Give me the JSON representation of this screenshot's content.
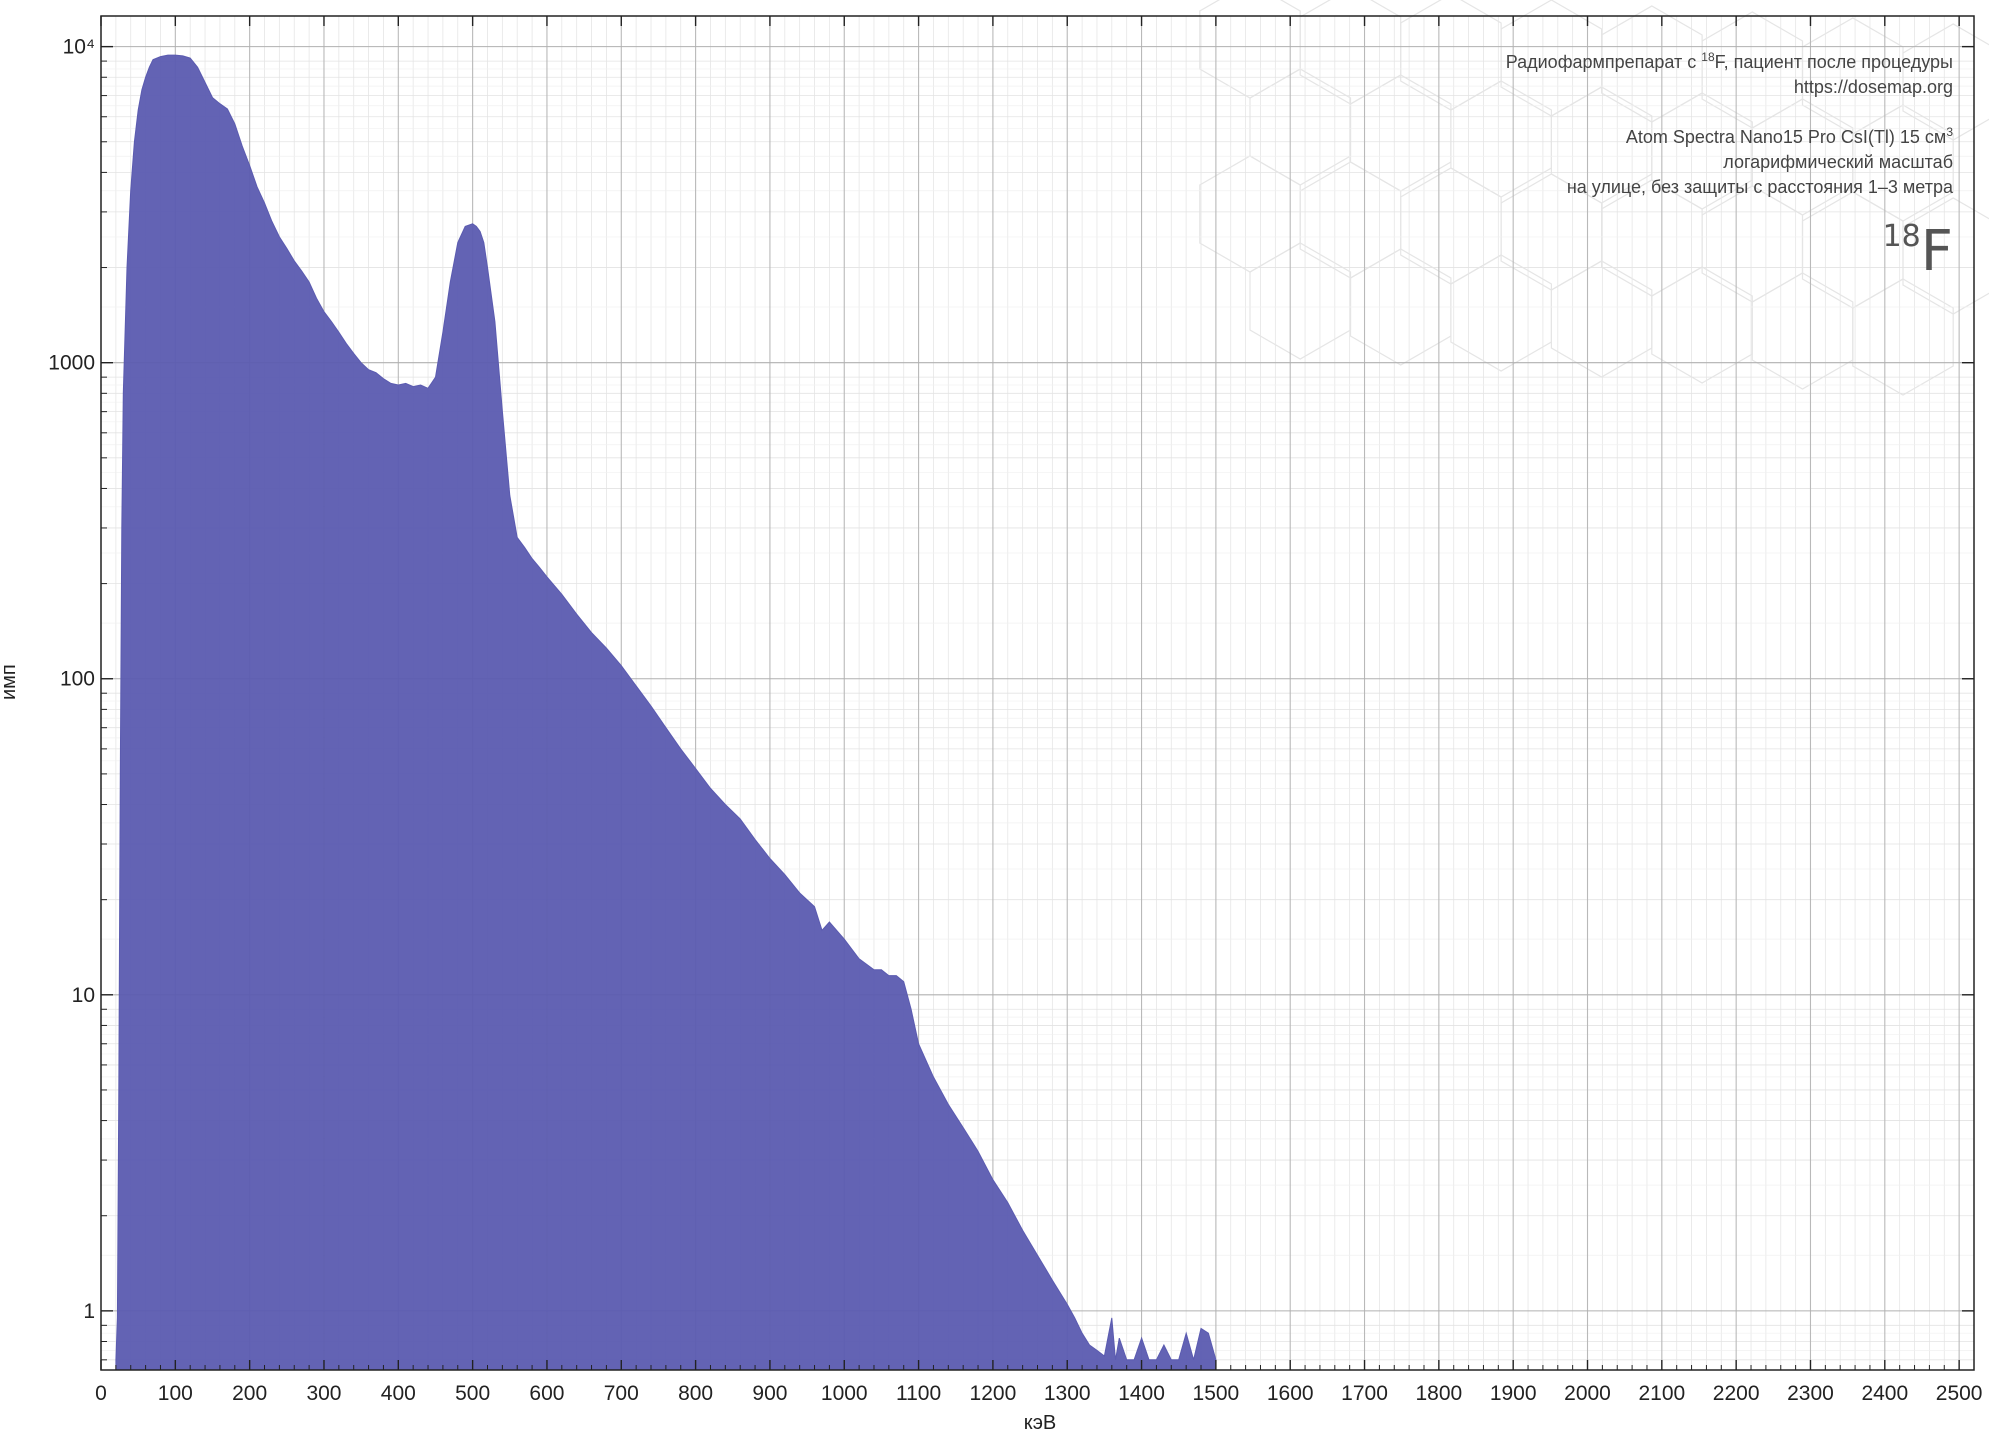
{
  "chart_data": {
    "type": "area",
    "title": "",
    "xlabel": "кэВ",
    "ylabel": "имп",
    "xlim": [
      0,
      2520
    ],
    "ylim": [
      0.65,
      12500
    ],
    "y_scale": "log",
    "grid": true,
    "x_ticks": [
      0,
      100,
      200,
      300,
      400,
      500,
      600,
      700,
      800,
      900,
      1000,
      1100,
      1200,
      1300,
      1400,
      1500,
      1600,
      1700,
      1800,
      1900,
      2000,
      2100,
      2200,
      2300,
      2400,
      2500
    ],
    "y_ticks": [
      {
        "value": 1,
        "label": "1"
      },
      {
        "value": 10,
        "label": "10"
      },
      {
        "value": 100,
        "label": "100"
      },
      {
        "value": 1000,
        "label": "1000"
      },
      {
        "value": 10000,
        "label": "10⁴"
      }
    ],
    "fill_color": "#5b5bb0",
    "series": [
      {
        "name": "",
        "x": [
          20,
          22,
          24,
          26,
          28,
          30,
          35,
          40,
          45,
          50,
          55,
          60,
          65,
          70,
          80,
          90,
          100,
          110,
          120,
          130,
          140,
          150,
          160,
          170,
          180,
          190,
          200,
          210,
          220,
          230,
          240,
          250,
          260,
          270,
          280,
          290,
          300,
          310,
          320,
          330,
          340,
          350,
          360,
          370,
          380,
          390,
          400,
          410,
          420,
          430,
          440,
          450,
          460,
          470,
          480,
          490,
          500,
          505,
          510,
          515,
          520,
          530,
          540,
          550,
          560,
          570,
          580,
          590,
          600,
          620,
          640,
          660,
          680,
          700,
          720,
          740,
          760,
          780,
          800,
          820,
          840,
          860,
          880,
          900,
          920,
          940,
          960,
          970,
          980,
          1000,
          1020,
          1040,
          1050,
          1060,
          1070,
          1080,
          1090,
          1100,
          1120,
          1140,
          1160,
          1180,
          1200,
          1220,
          1240,
          1260,
          1280,
          1300,
          1310,
          1320,
          1330,
          1340,
          1350,
          1360,
          1365,
          1370,
          1380,
          1390,
          1400,
          1410,
          1420,
          1430,
          1440,
          1450,
          1460,
          1470,
          1480,
          1490,
          1500
        ],
        "values": [
          0.7,
          0.95,
          5,
          50,
          300,
          800,
          2000,
          3500,
          5000,
          6300,
          7300,
          8000,
          8600,
          9100,
          9300,
          9400,
          9400,
          9350,
          9200,
          8600,
          7700,
          6900,
          6600,
          6350,
          5700,
          4850,
          4200,
          3600,
          3200,
          2800,
          2500,
          2300,
          2100,
          1950,
          1800,
          1600,
          1450,
          1350,
          1250,
          1150,
          1070,
          1000,
          950,
          930,
          890,
          860,
          850,
          860,
          840,
          850,
          830,
          900,
          1250,
          1800,
          2400,
          2700,
          2750,
          2700,
          2600,
          2400,
          2000,
          1350,
          700,
          380,
          280,
          260,
          240,
          225,
          210,
          185,
          160,
          140,
          125,
          110,
          95,
          82,
          70,
          60,
          52,
          45,
          40,
          36,
          31,
          27,
          24,
          21,
          19,
          16,
          17,
          15,
          13,
          12,
          12,
          11.5,
          11.5,
          11,
          9,
          7,
          5.5,
          4.5,
          3.8,
          3.2,
          2.6,
          2.2,
          1.8,
          1.5,
          1.25,
          1.05,
          0.95,
          0.85,
          0.78,
          0.75,
          0.72,
          0.95,
          0.7,
          0.82,
          0.7,
          0.7,
          0.82,
          0.7,
          0.7,
          0.78,
          0.7,
          0.7,
          0.85,
          0.7,
          0.88,
          0.85,
          0.7
        ]
      }
    ]
  },
  "annotations": {
    "line1_a": "Радиофармпрепарат с ",
    "line1_sup": "18",
    "line1_b": "F, пациент после процедуры",
    "line2": "https://dosemap.org",
    "line3_a": "Atom Spectra Nano15 Pro CsI(Tl) 15 см",
    "line3_sup": "3",
    "line4": "логарифмический масштаб",
    "line5": "на улице, без защиты с расстояния 1–3 метра"
  },
  "isotope": {
    "mass": "18",
    "symbol": "F"
  }
}
